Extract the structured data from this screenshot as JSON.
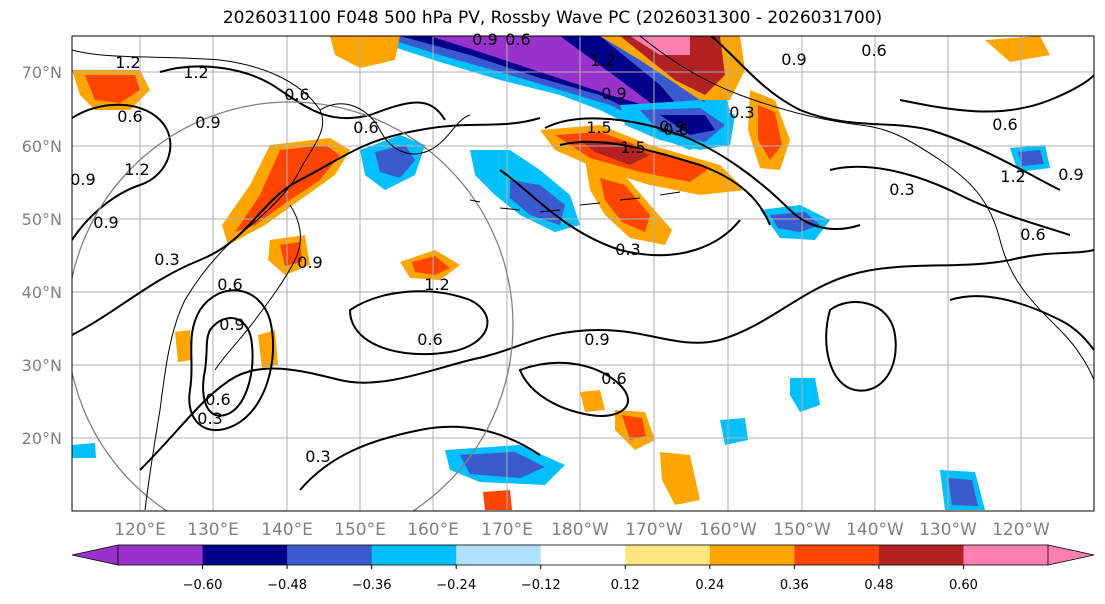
{
  "title": "2026031100 F048 500 hPa PV, Rossby Wave PC (2026031300 - 2026031700)",
  "map": {
    "lat_labels": [
      "70°N",
      "60°N",
      "50°N",
      "40°N",
      "30°N",
      "20°N"
    ],
    "lon_labels": [
      "120°E",
      "130°E",
      "140°E",
      "150°E",
      "160°E",
      "170°E",
      "180°W",
      "170°W",
      "160°W",
      "150°W",
      "140°W",
      "130°W",
      "120°W"
    ],
    "contour_labels": [
      "1.2",
      "1.2",
      "0.6",
      "0.9",
      "0.6",
      "0.6",
      "1.2",
      "0.9",
      "0.9",
      "0.3",
      "0.6",
      "0.9",
      "0.6",
      "0.3",
      "0.9",
      "1.2",
      "0.6",
      "0.3",
      "0.9",
      "0.6",
      "1.2",
      "0.9",
      "1.5",
      "0.3",
      "0.9",
      "0.6",
      "0.6",
      "1.5",
      "0.9",
      "0.3",
      "0.9",
      "0.6",
      "0.3",
      "0.6",
      "1.2",
      "0.6",
      "0.9"
    ]
  },
  "colorbar": {
    "ticks": [
      "−0.60",
      "−0.48",
      "−0.36",
      "−0.24",
      "−0.12",
      "0.12",
      "0.24",
      "0.36",
      "0.48",
      "0.60"
    ],
    "colors": [
      "#9932cc",
      "#00008b",
      "#3a5bd0",
      "#00bfff",
      "#b0e0ff",
      "#ffffff",
      "#ffe680",
      "#ffa500",
      "#ff4500",
      "#b22222",
      "#ff80b0"
    ]
  },
  "colors": {
    "purple": "#9932cc",
    "navy": "#00008b",
    "blue": "#3a5bd0",
    "cyan": "#00bfff",
    "lightblue": "#b0e0ff",
    "yellow": "#ffe680",
    "orange": "#ffa500",
    "red": "#ff4500",
    "darkred": "#b22222",
    "pink": "#ff80b0"
  }
}
